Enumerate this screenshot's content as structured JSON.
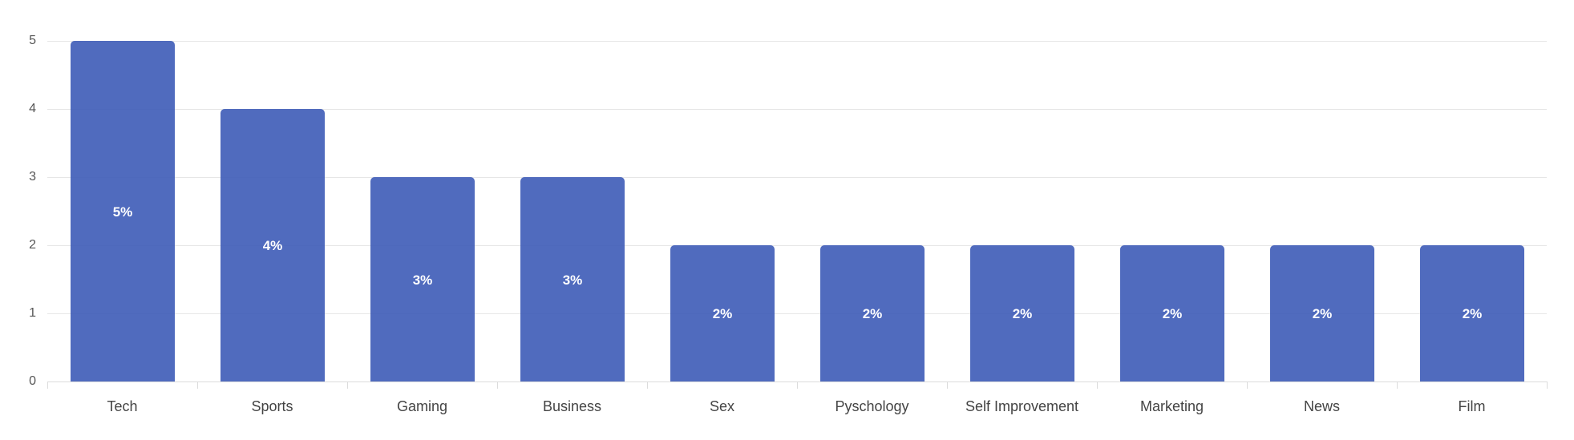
{
  "chart_data": {
    "type": "bar",
    "title": "",
    "xlabel": "",
    "ylabel": "",
    "ylim": [
      0,
      5
    ],
    "yticks": [
      "0",
      "1",
      "2",
      "3",
      "4",
      "5"
    ],
    "grid": true,
    "legend": null,
    "categories": [
      "Tech",
      "Sports",
      "Gaming",
      "Business",
      "Sex",
      "Pyschology",
      "Self Improvement",
      "Marketing",
      "News",
      "Film"
    ],
    "values": [
      5,
      4,
      3,
      3,
      2,
      2,
      2,
      2,
      2,
      2
    ],
    "data_labels": [
      "5%",
      "4%",
      "3%",
      "3%",
      "2%",
      "2%",
      "2%",
      "2%",
      "2%",
      "2%"
    ],
    "bar_color": "#4F6BBE"
  }
}
